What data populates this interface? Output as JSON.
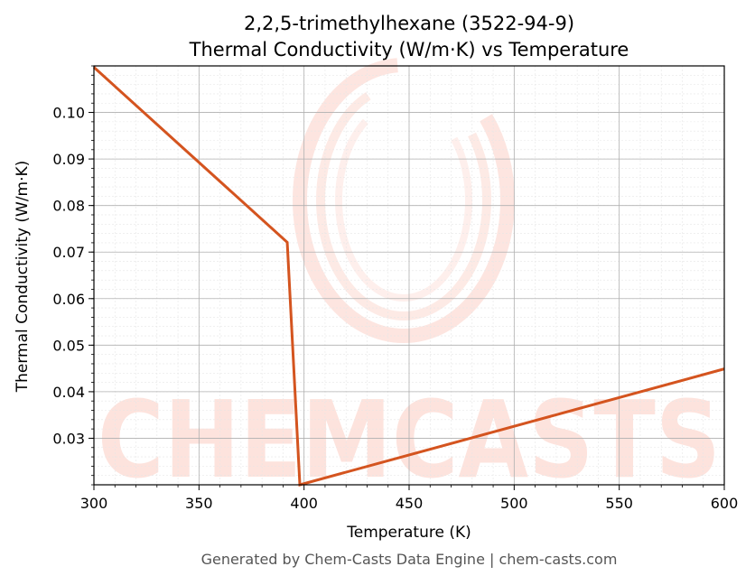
{
  "chart_data": {
    "type": "line",
    "title": "2,2,5-trimethylhexane (3522-94-9)",
    "subtitle": "Thermal Conductivity (W/m·K) vs Temperature",
    "xlabel": "Temperature (K)",
    "ylabel": "Thermal Conductivity (W/m·K)",
    "xlim": [
      300,
      600
    ],
    "ylim": [
      0.02,
      0.11
    ],
    "x_ticks": [
      300,
      350,
      400,
      450,
      500,
      550,
      600
    ],
    "y_ticks": [
      0.03,
      0.04,
      0.05,
      0.06,
      0.07,
      0.08,
      0.09,
      0.1
    ],
    "y_tick_labels": [
      "0.03",
      "0.04",
      "0.05",
      "0.06",
      "0.07",
      "0.08",
      "0.09",
      "0.10"
    ],
    "grid": true,
    "series": [
      {
        "color": "#d4541f",
        "x": [
          300,
          392,
          398,
          600
        ],
        "y": [
          0.1097,
          0.0721,
          0.02,
          0.0449
        ]
      }
    ]
  },
  "watermark": {
    "text": "CHEMCASTS",
    "color": "#fde3dd"
  },
  "footer": "Generated by Chem-Casts Data Engine | chem-casts.com"
}
